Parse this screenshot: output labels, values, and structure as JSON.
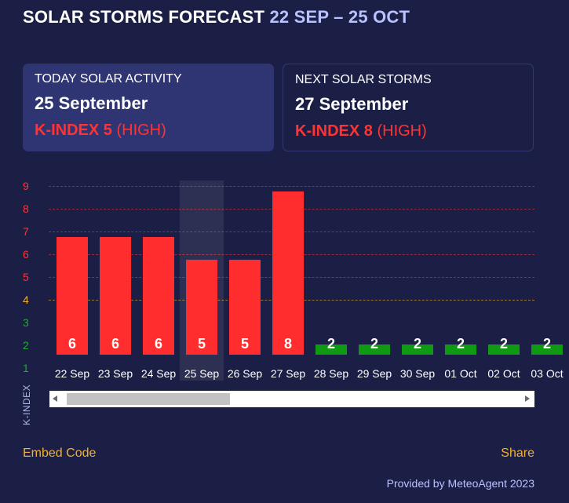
{
  "header": {
    "title": "SOLAR STORMS FORECAST",
    "range": "22 SEP – 25 OCT"
  },
  "today": {
    "label": "TODAY SOLAR ACTIVITY",
    "date": "25 September",
    "kindex": "K-INDEX 5",
    "level": "(HIGH)"
  },
  "next": {
    "label": "NEXT SOLAR STORMS",
    "date": "27 September",
    "kindex": "K-INDEX 8",
    "level": "(HIGH)"
  },
  "chart_data": {
    "type": "bar",
    "ylabel": "K-INDEX",
    "ylim": [
      1,
      9
    ],
    "yticks": [
      "9",
      "8",
      "7",
      "6",
      "5",
      "4",
      "3",
      "2",
      "1"
    ],
    "categories": [
      "22 Sep",
      "23 Sep",
      "24 Sep",
      "25 Sep",
      "26 Sep",
      "27 Sep",
      "28 Sep",
      "29 Sep",
      "30 Sep",
      "01 Oct",
      "02 Oct",
      "03 Oct"
    ],
    "values": [
      6,
      6,
      6,
      5,
      5,
      8,
      2,
      2,
      2,
      2,
      2,
      2
    ],
    "labels": [
      "6",
      "6",
      "6",
      "5",
      "5",
      "8",
      "2",
      "2",
      "2",
      "2",
      "2",
      "2"
    ],
    "highlight_category": "25 Sep",
    "colors": {
      "high": "#ff2d2d",
      "low": "#0f9a14",
      "tick_high": "#ff3333",
      "tick_mid": "#e8b035",
      "tick_low": "#18b025"
    }
  },
  "footer": {
    "embed": "Embed Code",
    "share": "Share",
    "provided": "Provided by MeteoAgent 2023"
  }
}
